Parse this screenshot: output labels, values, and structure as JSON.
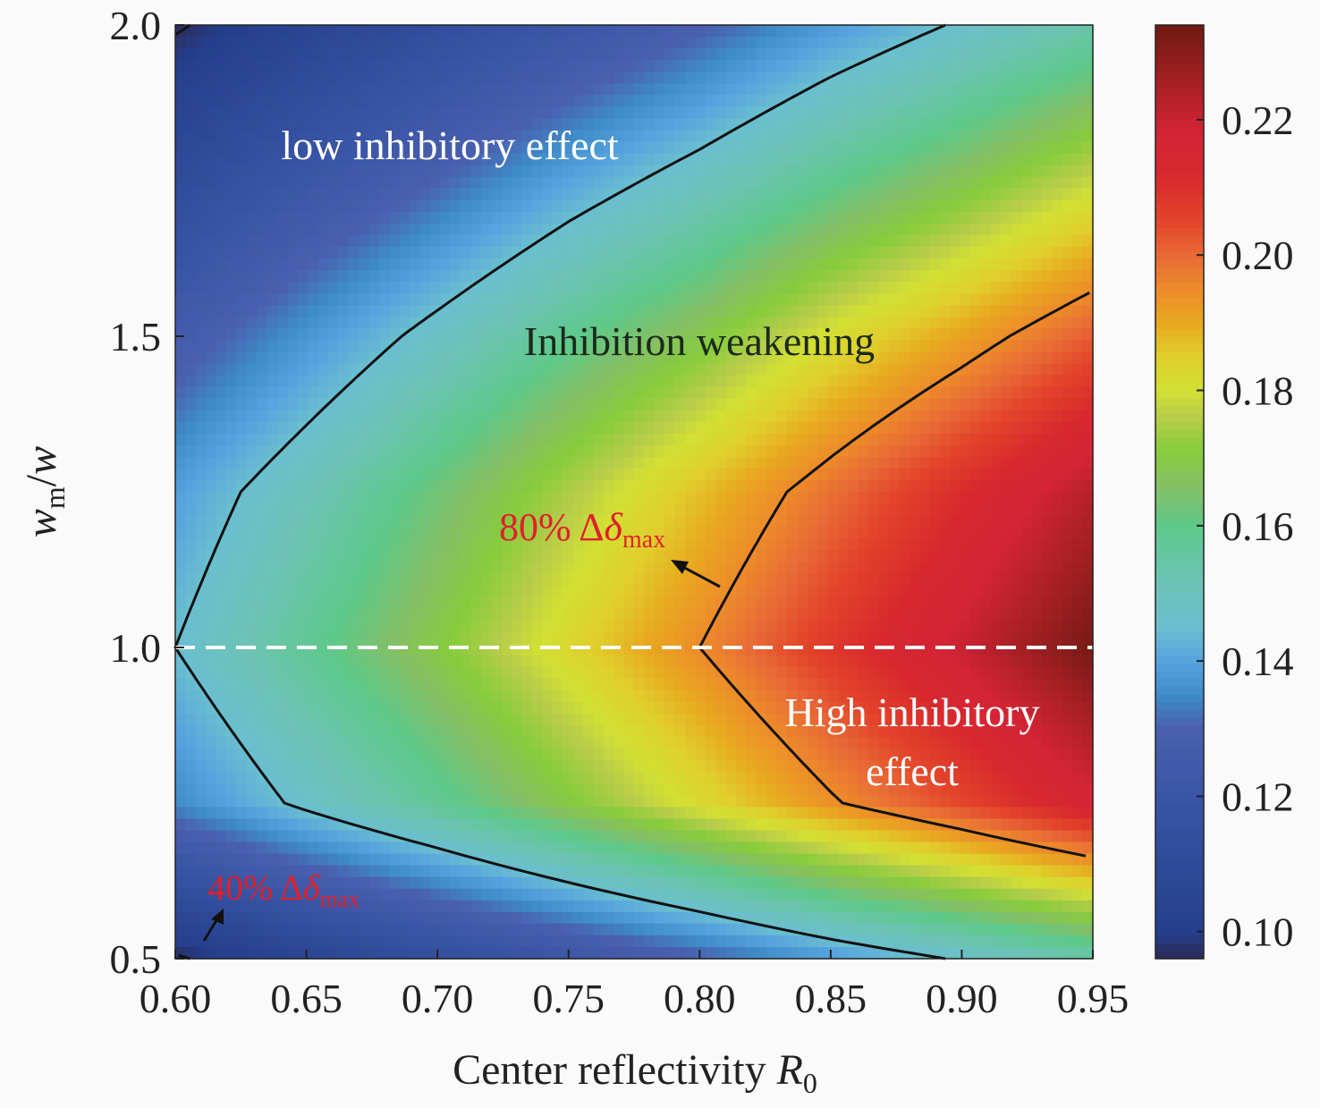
{
  "chart_data": {
    "type": "heatmap",
    "title": "",
    "xlabel": "Center reflectivity ",
    "xlabel_var": "R",
    "xlabel_sub": "0",
    "ylabel_var1": "w",
    "ylabel_sub": "m",
    "ylabel_rest": "/",
    "ylabel_var2": "w",
    "xlim": [
      0.6,
      0.95
    ],
    "ylim": [
      0.5,
      2.0
    ],
    "x_ticks": [
      "0.60",
      "0.65",
      "0.70",
      "0.75",
      "0.80",
      "0.85",
      "0.90",
      "0.95"
    ],
    "y_ticks": [
      "0.5",
      "1.0",
      "1.5",
      "2.0"
    ],
    "x": [
      0.6,
      0.65,
      0.7,
      0.75,
      0.8,
      0.85,
      0.9,
      0.95
    ],
    "y": [
      0.5,
      0.75,
      1.0,
      1.25,
      1.5,
      1.75,
      2.0
    ],
    "z": [
      [
        0.096,
        0.105,
        0.113,
        0.121,
        0.129,
        0.138,
        0.146,
        0.154
      ],
      [
        0.135,
        0.147,
        0.158,
        0.17,
        0.182,
        0.194,
        0.205,
        0.217
      ],
      [
        0.145,
        0.158,
        0.17,
        0.183,
        0.195,
        0.208,
        0.22,
        0.233
      ],
      [
        0.139,
        0.151,
        0.163,
        0.175,
        0.187,
        0.199,
        0.211,
        0.223
      ],
      [
        0.126,
        0.137,
        0.148,
        0.159,
        0.169,
        0.181,
        0.191,
        0.202
      ],
      [
        0.111,
        0.121,
        0.13,
        0.14,
        0.149,
        0.159,
        0.168,
        0.178
      ],
      [
        0.096,
        0.105,
        0.113,
        0.121,
        0.129,
        0.138,
        0.146,
        0.154
      ]
    ],
    "colorbar": {
      "range": [
        0.096,
        0.234
      ],
      "ticks": [
        "0.10",
        "0.12",
        "0.14",
        "0.16",
        "0.18",
        "0.20",
        "0.22"
      ],
      "colormap": "jet"
    },
    "contour_levels": [
      0.097,
      0.145,
      0.195
    ],
    "dashed_line_y": 1.0,
    "grid": false,
    "annotations": {
      "low": "low inhibitory effect",
      "weakening": "Inhibition weakening",
      "high_line1": "High inhibitory",
      "high_line2": "effect",
      "p80_pct": "80% Δ",
      "p80_sym": "δ",
      "p80_sub": "max",
      "p40_pct": "40% Δ",
      "p40_sym": "δ",
      "p40_sub": "max"
    },
    "colors": {
      "annotation_red": "#e0202a",
      "annotation_white": "#ffffff",
      "annotation_dark": "#1a2a1a",
      "dashed_line": "#ffffff"
    }
  }
}
